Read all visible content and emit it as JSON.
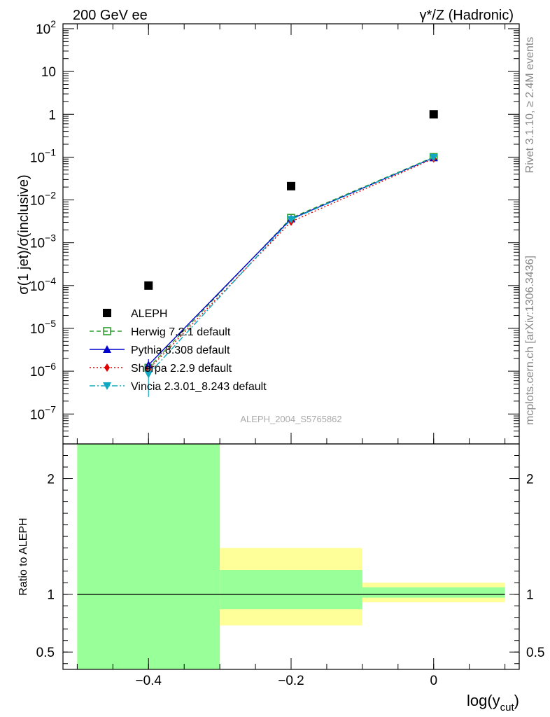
{
  "colors": {
    "data": "#000000",
    "herwig": "#2f9e2f",
    "pythia": "#0000cc",
    "sherpa": "#e00000",
    "vincia": "#10a8c0",
    "band_inner": "#99ff99",
    "band_outer": "#ffff99"
  },
  "chart_data": [
    {
      "type": "scatter",
      "title_left": "200 GeV ee",
      "title_right": "γ*/Z (Hadronic)",
      "ylabel": "σ(1 jet)/σ(inclusive)",
      "yscale": "log",
      "ylim": [
        2e-08,
        130
      ],
      "xlim": [
        -0.52,
        0.12
      ],
      "y_ticks": [
        {
          "value": 1e-07,
          "label": "10",
          "exp": "−7"
        },
        {
          "value": 1e-06,
          "label": "10",
          "exp": "−6"
        },
        {
          "value": 1e-05,
          "label": "10",
          "exp": "−5"
        },
        {
          "value": 0.0001,
          "label": "10",
          "exp": "−4"
        },
        {
          "value": 0.001,
          "label": "10",
          "exp": "−3"
        },
        {
          "value": 0.01,
          "label": "10",
          "exp": "−2"
        },
        {
          "value": 0.1,
          "label": "10",
          "exp": "−1"
        },
        {
          "value": 1,
          "label": "1",
          "exp": ""
        },
        {
          "value": 10,
          "label": "10",
          "exp": ""
        },
        {
          "value": 100,
          "label": "10",
          "exp": "2"
        }
      ],
      "series": [
        {
          "name": "ALEPH",
          "key": "data",
          "marker": "square",
          "style": "none",
          "x": [
            -0.4,
            -0.2,
            0.0
          ],
          "y": [
            0.0001,
            0.021,
            1.0
          ]
        },
        {
          "name": "Herwig 7.2.1 default",
          "key": "herwig",
          "marker": "open-square",
          "style": "dashed",
          "x": [
            -0.4,
            -0.2,
            0.0
          ],
          "y": [
            1.2e-06,
            0.0038,
            0.1
          ],
          "err": [
            4e-07,
            0,
            0
          ]
        },
        {
          "name": "Pythia 8.308 default",
          "key": "pythia",
          "marker": "triangle-up",
          "style": "solid",
          "x": [
            -0.4,
            -0.2,
            0.0
          ],
          "y": [
            1.4e-06,
            0.0036,
            0.097
          ],
          "err": [
            5e-07,
            0,
            0
          ]
        },
        {
          "name": "Sherpa 2.2.9 default",
          "key": "sherpa",
          "marker": "diamond",
          "style": "dotted",
          "x": [
            -0.4,
            -0.2,
            0.0
          ],
          "y": [
            1.1e-06,
            0.0031,
            0.093
          ],
          "err": [
            4e-07,
            0,
            0
          ]
        },
        {
          "name": "Vincia 2.3.01_8.243 default",
          "key": "vincia",
          "marker": "triangle-down",
          "style": "dashdot",
          "x": [
            -0.4,
            -0.2,
            0.0
          ],
          "y": [
            8.5e-07,
            0.0035,
            0.098
          ],
          "err": [
            6e-07,
            0,
            0
          ]
        }
      ],
      "watermark": "ALEPH_2004_S5765862",
      "side_labels": [
        "Rivet 3.1.10, ≥ 2.4M events",
        "mcplots.cern.ch [arXiv:1306.3436]"
      ]
    },
    {
      "type": "area",
      "ylabel": "Ratio to ALEPH",
      "xlabel": "log(y",
      "xlabel_sub": "cut",
      "xlabel_close": ")",
      "ylim": [
        0.35,
        2.3
      ],
      "xlim": [
        -0.52,
        0.12
      ],
      "y_ticks": [
        0.5,
        1,
        2
      ],
      "y_tick_labels": [
        "0.5",
        "1",
        "2"
      ],
      "x_ticks": [
        -0.4,
        -0.2,
        0
      ],
      "x_tick_labels": [
        "−0.4",
        "−0.2",
        "0"
      ],
      "bins": [
        {
          "x_lo": -0.5,
          "x_hi": -0.3,
          "outer_lo": 0.0,
          "outer_hi": 3.0,
          "inner_lo": 0.0,
          "inner_hi": 3.0
        },
        {
          "x_lo": -0.3,
          "x_hi": -0.1,
          "outer_lo": 0.73,
          "outer_hi": 1.4,
          "inner_lo": 0.87,
          "inner_hi": 1.21
        },
        {
          "x_lo": -0.1,
          "x_hi": 0.1,
          "outer_lo": 0.93,
          "outer_hi": 1.1,
          "inner_lo": 0.97,
          "inner_hi": 1.06
        }
      ],
      "reference_line": 1
    }
  ]
}
